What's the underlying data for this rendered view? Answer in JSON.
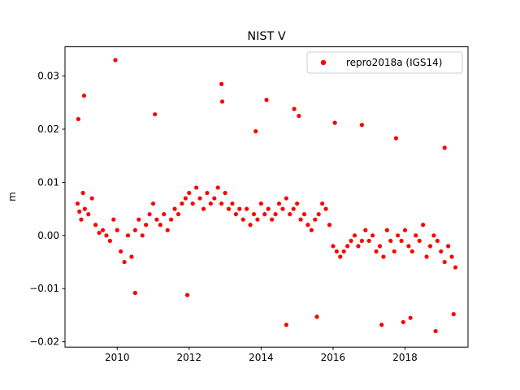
{
  "chart_data": {
    "type": "scatter",
    "title": "NIST V",
    "xlabel": "",
    "ylabel": "m",
    "xlim": [
      2008.55,
      2019.75
    ],
    "ylim": [
      -0.021,
      0.0355
    ],
    "xticks": [
      2010,
      2012,
      2014,
      2016,
      2018
    ],
    "xtick_labels": [
      "2010",
      "2012",
      "2014",
      "2016",
      "2018"
    ],
    "yticks": [
      -0.02,
      -0.01,
      0.0,
      0.01,
      0.02,
      0.03
    ],
    "ytick_labels": [
      "−0.02",
      "−0.01",
      "0.00",
      "0.01",
      "0.02",
      "0.03"
    ],
    "grid": false,
    "legend_position": "top-right",
    "series": [
      {
        "name": "repro2018a (IGS14)",
        "color": "#ff0000",
        "marker": "circle",
        "x": [
          2008.9,
          2008.95,
          2009.0,
          2009.05,
          2009.1,
          2009.2,
          2009.3,
          2009.4,
          2009.5,
          2009.6,
          2009.7,
          2009.8,
          2009.9,
          2010.0,
          2010.1,
          2010.2,
          2010.3,
          2010.4,
          2010.5,
          2010.6,
          2010.7,
          2010.8,
          2010.9,
          2011.0,
          2011.1,
          2011.2,
          2011.3,
          2011.4,
          2011.5,
          2011.6,
          2011.7,
          2011.8,
          2011.9,
          2012.0,
          2012.1,
          2012.2,
          2012.3,
          2012.4,
          2012.5,
          2012.6,
          2012.7,
          2012.8,
          2012.9,
          2013.0,
          2013.1,
          2013.2,
          2013.3,
          2013.4,
          2013.5,
          2013.6,
          2013.7,
          2013.8,
          2013.9,
          2014.0,
          2014.1,
          2014.2,
          2014.3,
          2014.4,
          2014.5,
          2014.6,
          2014.7,
          2014.8,
          2014.9,
          2015.0,
          2015.1,
          2015.2,
          2015.3,
          2015.4,
          2015.5,
          2015.6,
          2015.7,
          2015.8,
          2015.9,
          2016.0,
          2016.1,
          2016.2,
          2016.3,
          2016.4,
          2016.5,
          2016.6,
          2016.7,
          2016.8,
          2016.9,
          2017.0,
          2017.1,
          2017.2,
          2017.3,
          2017.4,
          2017.5,
          2017.6,
          2017.7,
          2017.8,
          2017.9,
          2018.0,
          2018.1,
          2018.2,
          2018.3,
          2018.4,
          2018.5,
          2018.6,
          2018.7,
          2018.8,
          2018.9,
          2019.0,
          2019.1,
          2019.2,
          2019.3,
          2019.4,
          2008.92,
          2009.08,
          2009.95,
          2010.5,
          2011.05,
          2011.95,
          2012.9,
          2012.92,
          2013.85,
          2014.15,
          2014.7,
          2014.92,
          2015.05,
          2015.55,
          2016.05,
          2016.8,
          2017.35,
          2017.75,
          2017.95,
          2018.15,
          2018.85,
          2019.1,
          2019.35
        ],
        "y": [
          0.006,
          0.0045,
          0.003,
          0.008,
          0.005,
          0.004,
          0.007,
          0.002,
          0.0005,
          0.001,
          0.0,
          -0.001,
          0.003,
          0.001,
          -0.003,
          -0.005,
          0.0,
          -0.004,
          0.001,
          0.003,
          0.0,
          0.002,
          0.004,
          0.006,
          0.003,
          0.002,
          0.004,
          0.001,
          0.003,
          0.005,
          0.004,
          0.006,
          0.007,
          0.008,
          0.006,
          0.009,
          0.007,
          0.005,
          0.008,
          0.006,
          0.007,
          0.009,
          0.006,
          0.008,
          0.005,
          0.006,
          0.004,
          0.005,
          0.003,
          0.005,
          0.002,
          0.004,
          0.003,
          0.006,
          0.004,
          0.005,
          0.003,
          0.004,
          0.006,
          0.005,
          0.007,
          0.004,
          0.005,
          0.006,
          0.003,
          0.004,
          0.002,
          0.001,
          0.003,
          0.004,
          0.006,
          0.005,
          0.002,
          -0.002,
          -0.003,
          -0.004,
          -0.003,
          -0.002,
          -0.001,
          0.0,
          -0.002,
          -0.001,
          0.001,
          -0.001,
          0.0,
          -0.003,
          -0.002,
          -0.004,
          0.001,
          -0.001,
          -0.003,
          0.0,
          -0.001,
          0.001,
          -0.002,
          -0.003,
          0.0,
          -0.001,
          0.002,
          -0.004,
          -0.002,
          0.0,
          -0.001,
          -0.003,
          -0.005,
          -0.002,
          -0.004,
          -0.006,
          0.0219,
          0.0263,
          0.033,
          -0.0108,
          0.0228,
          -0.0112,
          0.0285,
          0.0252,
          0.0196,
          0.0255,
          -0.0168,
          0.0238,
          0.0225,
          -0.0153,
          0.0212,
          0.0208,
          -0.0168,
          0.0183,
          -0.0163,
          -0.0155,
          -0.018,
          0.0165,
          -0.0148
        ]
      }
    ]
  }
}
